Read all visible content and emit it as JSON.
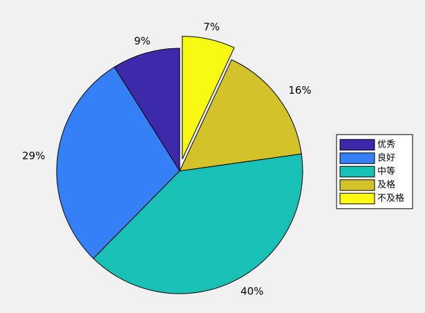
{
  "chart_data": {
    "type": "pie",
    "categories": [
      "优秀",
      "良好",
      "中等",
      "及格",
      "不及格"
    ],
    "values": [
      9,
      29,
      40,
      16,
      7
    ],
    "value_labels": [
      "9%",
      "29%",
      "40%",
      "16%",
      "7%"
    ],
    "colors": [
      "#3d2aab",
      "#3580f6",
      "#19c0b5",
      "#d3c229",
      "#f9fa14"
    ],
    "explode": [
      false,
      false,
      false,
      false,
      true
    ],
    "legend": "east"
  }
}
